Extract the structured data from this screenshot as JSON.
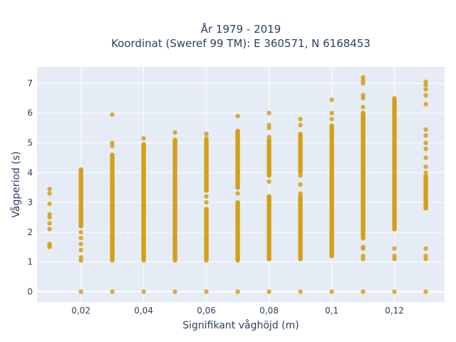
{
  "chart_data": {
    "type": "scatter",
    "title": "År 1979 - 2019",
    "subtitle": "Koordinat (Sweref 99 TM): E 360571, N 6168453",
    "xlabel": "Signifikant våghöjd (m)",
    "ylabel": "Vågperiod (s)",
    "xlim": [
      0.006,
      0.136
    ],
    "ylim": [
      -0.35,
      7.55
    ],
    "x_ticks": [
      0.02,
      0.04,
      0.06,
      0.08,
      0.1,
      0.12
    ],
    "x_tick_labels": [
      "0,02",
      "0,04",
      "0,06",
      "0,08",
      "0,1",
      "0,12"
    ],
    "y_ticks": [
      0,
      1,
      2,
      3,
      4,
      5,
      6,
      7
    ],
    "y_tick_labels": [
      "0",
      "1",
      "2",
      "3",
      "4",
      "5",
      "6",
      "7"
    ],
    "grid": true,
    "marker_color": "#d4a017",
    "plot_background": "#e5ecf6",
    "groups": [
      {
        "x": 0.01,
        "y": [
          1.5,
          1.55,
          1.6,
          2.1,
          2.3,
          2.5,
          2.6,
          2.95,
          3.3,
          3.45
        ],
        "ranges": []
      },
      {
        "x": 0.02,
        "y": [
          0,
          1.05,
          1.15,
          1.4,
          1.6,
          1.8,
          2.0,
          2.2,
          2.4,
          2.6,
          2.8,
          3.0,
          3.2,
          3.4,
          3.6,
          3.8,
          4.0,
          4.1
        ],
        "ranges": [
          [
            2.2,
            4.1
          ]
        ]
      },
      {
        "x": 0.03,
        "y": [
          0,
          1.05,
          1.2,
          1.4,
          1.6,
          1.8,
          2.0,
          2.2,
          2.4,
          2.6,
          2.8,
          3.0,
          3.2,
          3.4,
          3.6,
          3.8,
          4.0,
          4.2,
          4.5,
          4.6,
          4.9,
          5.0,
          5.95
        ],
        "ranges": [
          [
            1.1,
            4.6
          ]
        ]
      },
      {
        "x": 0.04,
        "y": [
          0,
          1.05,
          1.2,
          1.4,
          1.6,
          1.8,
          2.0,
          2.2,
          2.4,
          2.6,
          2.8,
          3.0,
          3.2,
          3.4,
          3.6,
          3.8,
          4.0,
          4.2,
          4.4,
          4.6,
          4.8,
          4.95,
          5.15
        ],
        "ranges": [
          [
            1.1,
            4.95
          ]
        ]
      },
      {
        "x": 0.05,
        "y": [
          0,
          1.05,
          1.2,
          1.4,
          1.6,
          1.8,
          2.0,
          2.2,
          2.4,
          2.6,
          2.8,
          3.0,
          3.2,
          3.4,
          3.6,
          3.8,
          4.0,
          4.2,
          4.4,
          4.6,
          4.8,
          5.0,
          5.1,
          5.35
        ],
        "ranges": [
          [
            1.1,
            5.1
          ]
        ]
      },
      {
        "x": 0.06,
        "y": [
          0,
          1.05,
          1.2,
          1.5,
          1.8,
          2.0,
          2.3,
          2.6,
          3.0,
          3.2,
          3.4,
          3.6,
          3.8,
          4.0,
          4.2,
          4.4,
          4.6,
          4.8,
          5.0,
          5.15,
          5.3
        ],
        "ranges": [
          [
            1.1,
            2.8
          ],
          [
            3.4,
            5.1
          ]
        ]
      },
      {
        "x": 0.07,
        "y": [
          0,
          1.05,
          1.2,
          1.5,
          1.8,
          2.0,
          2.3,
          2.6,
          3.0,
          3.3,
          3.5,
          3.8,
          4.0,
          4.2,
          4.5,
          4.8,
          5.0,
          5.2,
          5.4,
          5.9
        ],
        "ranges": [
          [
            1.1,
            3.0
          ],
          [
            3.5,
            5.4
          ]
        ]
      },
      {
        "x": 0.08,
        "y": [
          0,
          1.1,
          1.3,
          1.5,
          1.8,
          2.0,
          2.3,
          2.6,
          2.9,
          3.1,
          3.2,
          3.7,
          4.0,
          4.3,
          4.6,
          4.8,
          5.0,
          5.2,
          5.5,
          5.6,
          6.0
        ],
        "ranges": [
          [
            1.1,
            3.2
          ],
          [
            3.9,
            5.1
          ]
        ]
      },
      {
        "x": 0.09,
        "y": [
          0,
          1.1,
          1.3,
          1.5,
          1.8,
          2.0,
          2.3,
          2.6,
          2.9,
          3.1,
          3.3,
          3.6,
          3.9,
          4.2,
          4.5,
          4.8,
          5.0,
          5.3,
          5.6,
          5.8
        ],
        "ranges": [
          [
            1.1,
            3.2
          ],
          [
            4.0,
            5.3
          ]
        ]
      },
      {
        "x": 0.1,
        "y": [
          0,
          1.2,
          1.4,
          1.6,
          1.9,
          2.2,
          2.5,
          2.8,
          3.1,
          3.4,
          3.7,
          4.0,
          4.3,
          4.6,
          4.9,
          5.2,
          5.5,
          5.8,
          6.0,
          6.45
        ],
        "ranges": [
          [
            1.2,
            5.6
          ]
        ]
      },
      {
        "x": 0.11,
        "y": [
          0,
          1.1,
          1.2,
          1.45,
          1.5,
          1.8,
          2.0,
          2.2,
          2.5,
          2.8,
          3.1,
          3.4,
          3.7,
          4.0,
          4.3,
          4.6,
          4.9,
          5.2,
          5.5,
          5.8,
          6.0,
          6.2,
          6.5,
          6.6,
          7.0,
          7.1,
          7.2
        ],
        "ranges": [
          [
            1.8,
            6.0
          ]
        ]
      },
      {
        "x": 0.12,
        "y": [
          0,
          1.1,
          1.2,
          1.45,
          2.1,
          2.4,
          2.7,
          3.0,
          3.3,
          3.6,
          3.9,
          4.2,
          4.5,
          4.8,
          5.1,
          5.4,
          5.7,
          6.0,
          6.3,
          6.5
        ],
        "ranges": [
          [
            2.1,
            6.45
          ]
        ]
      },
      {
        "x": 0.13,
        "y": [
          0,
          1.1,
          1.2,
          1.45,
          2.8,
          3.0,
          3.2,
          3.4,
          3.6,
          3.8,
          4.0,
          4.2,
          4.5,
          4.8,
          5.0,
          5.25,
          5.45,
          6.3,
          6.6,
          6.8,
          6.95,
          7.05
        ],
        "ranges": [
          [
            2.8,
            3.9
          ]
        ]
      }
    ]
  }
}
